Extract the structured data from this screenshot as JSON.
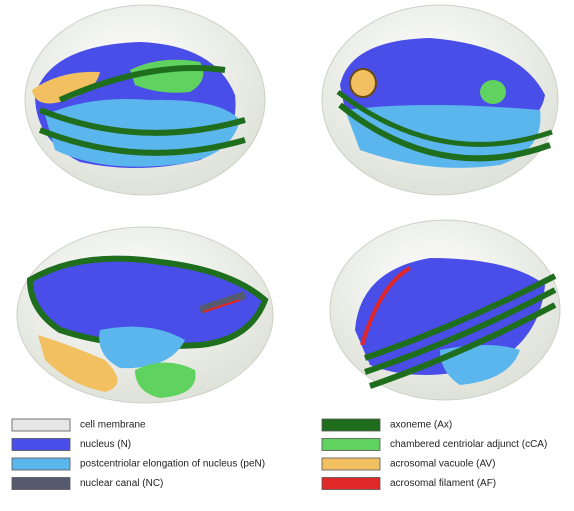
{
  "legend": {
    "items": [
      {
        "label": "cell membrane",
        "color": "#e6e6e6"
      },
      {
        "label": "nucleus (N)",
        "color": "#4a4ee8"
      },
      {
        "label": "postcentriolar elongation of nucleus (peN)",
        "color": "#5ab6ec"
      },
      {
        "label": "nuclear canal (NC)",
        "color": "#555a6e"
      },
      {
        "label": "axoneme (Ax)",
        "color": "#1e6e1e"
      },
      {
        "label": "chambered centriolar adjunct (cCA)",
        "color": "#5fd25f"
      },
      {
        "label": "acrosomal vacuole (AV)",
        "color": "#f2c060"
      },
      {
        "label": "acrosomal filament (AF)",
        "color": "#e02828"
      }
    ]
  }
}
